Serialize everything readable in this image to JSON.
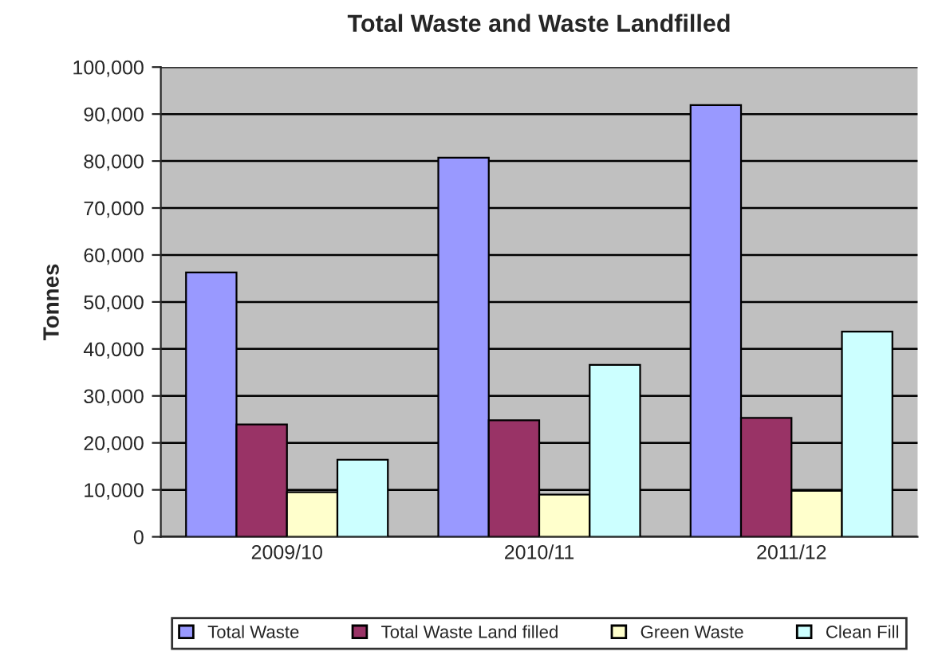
{
  "chart_data": {
    "type": "bar",
    "title": "Total Waste and Waste Landfilled",
    "ylabel": "Tonnes",
    "categories": [
      "2009/10",
      "2010/11",
      "2011/12"
    ],
    "series": [
      {
        "name": "Total Waste",
        "color": "#9999ff",
        "values": [
          56300,
          80700,
          91900
        ]
      },
      {
        "name": "Total Waste Land filled",
        "color": "#993366",
        "values": [
          23900,
          24800,
          25300
        ]
      },
      {
        "name": "Green Waste",
        "color": "#ffffcc",
        "values": [
          9500,
          9000,
          9800
        ]
      },
      {
        "name": "Clean Fill",
        "color": "#ccffff",
        "values": [
          16400,
          36600,
          43700
        ]
      }
    ],
    "ylim": [
      0,
      100000
    ],
    "yticks": [
      {
        "value": 0,
        "label": "0"
      },
      {
        "value": 10000,
        "label": "10,000"
      },
      {
        "value": 20000,
        "label": "20,000"
      },
      {
        "value": 30000,
        "label": "30,000"
      },
      {
        "value": 40000,
        "label": "40,000"
      },
      {
        "value": 50000,
        "label": "50,000"
      },
      {
        "value": 60000,
        "label": "60,000"
      },
      {
        "value": 70000,
        "label": "70,000"
      },
      {
        "value": 80000,
        "label": "80,000"
      },
      {
        "value": 90000,
        "label": "90,000"
      },
      {
        "value": 100000,
        "label": "100,000"
      }
    ],
    "grid": "y",
    "legend": "bottom"
  }
}
